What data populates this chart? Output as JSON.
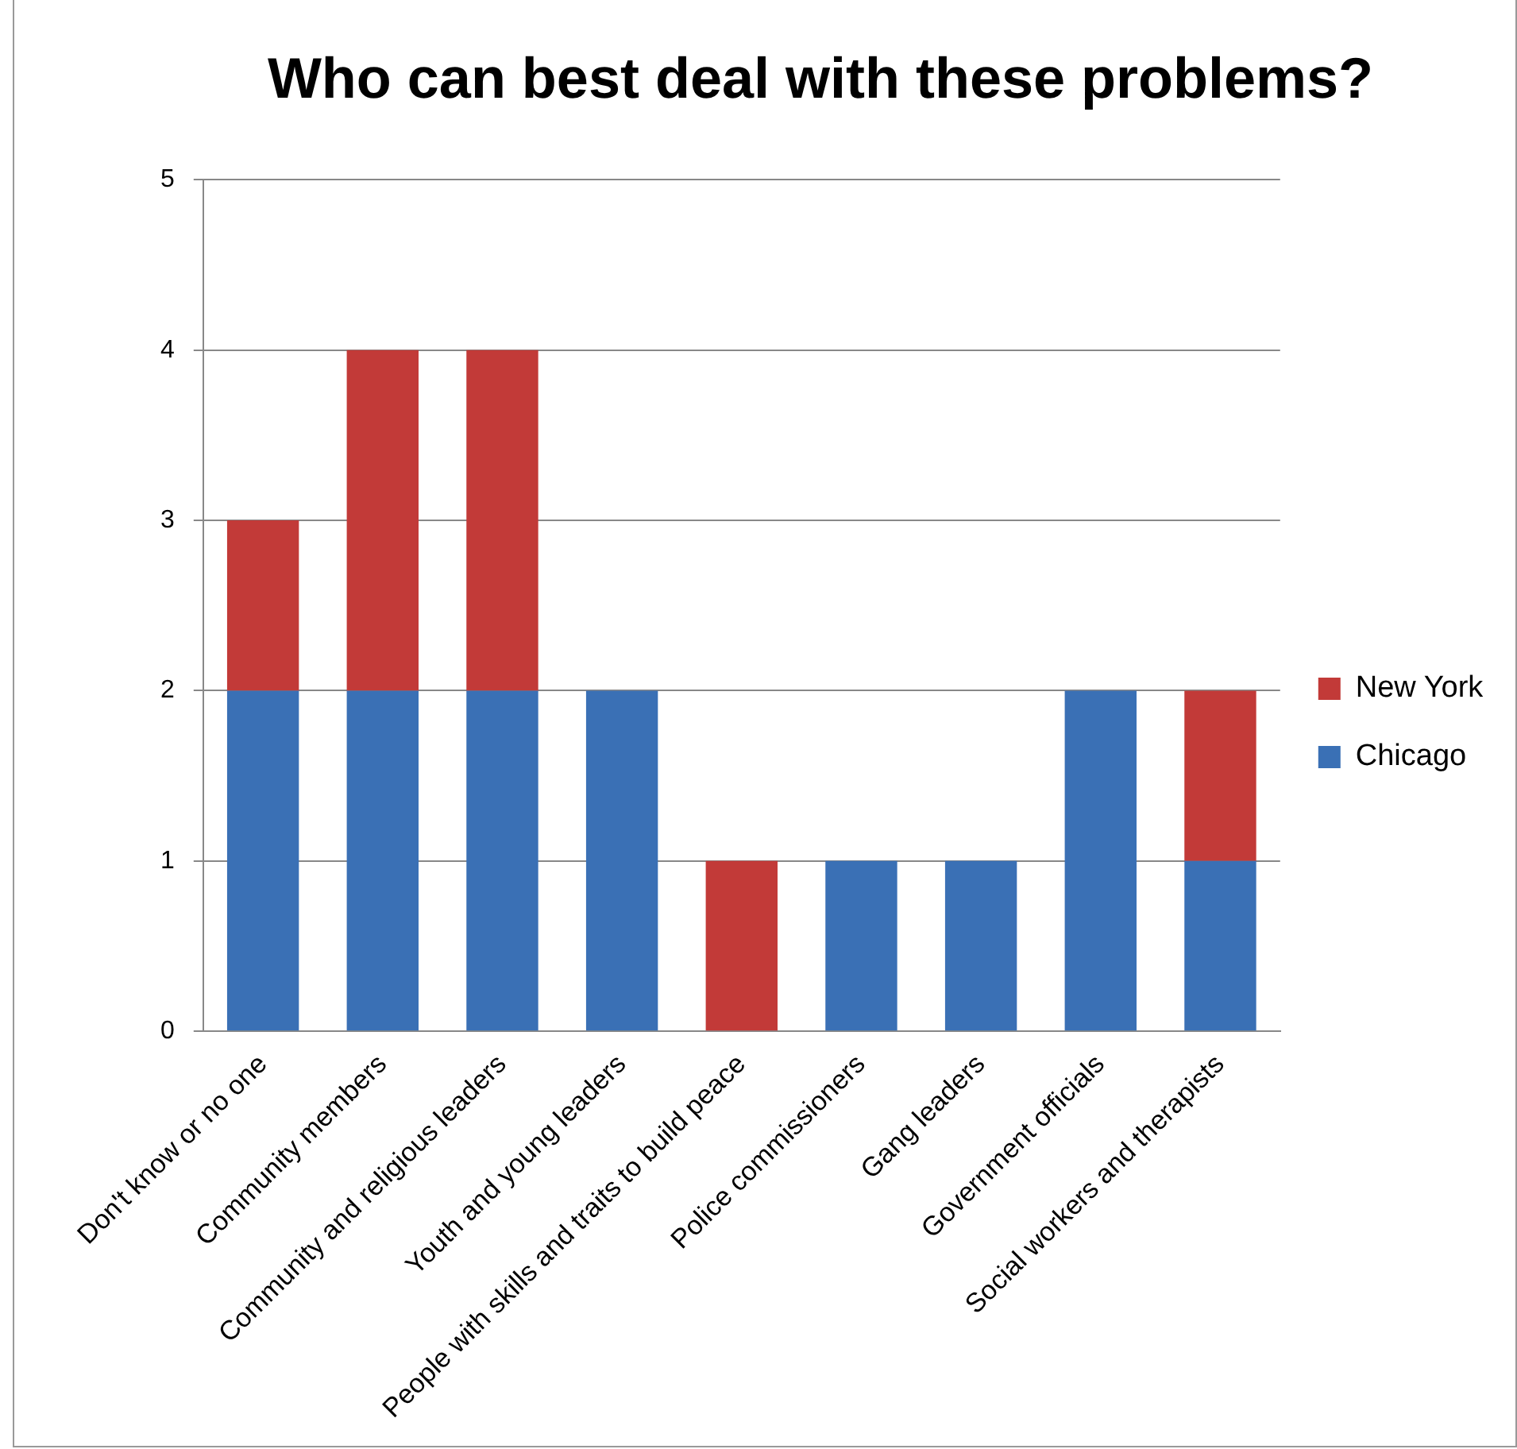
{
  "chart_data": {
    "type": "bar",
    "title": "Who can best deal with these problems?",
    "categories": [
      "Don't know or no one",
      "Community members",
      "Community and religious leaders",
      "Youth and young leaders",
      "People with skills and traits to build peace",
      "Police commissioners",
      "Gang leaders",
      "Government officials",
      "Social workers and therapists"
    ],
    "series": [
      {
        "name": "Chicago",
        "color": "#3a70b5",
        "values": [
          2,
          2,
          2,
          2,
          0,
          1,
          1,
          2,
          1
        ]
      },
      {
        "name": "New York",
        "color": "#c23a38",
        "values": [
          1,
          2,
          2,
          0,
          1,
          0,
          0,
          0,
          1
        ]
      }
    ],
    "stacked": true,
    "ylim": [
      0,
      5
    ],
    "yticks": [
      0,
      1,
      2,
      3,
      4,
      5
    ],
    "grid": "y",
    "legend": "right"
  }
}
